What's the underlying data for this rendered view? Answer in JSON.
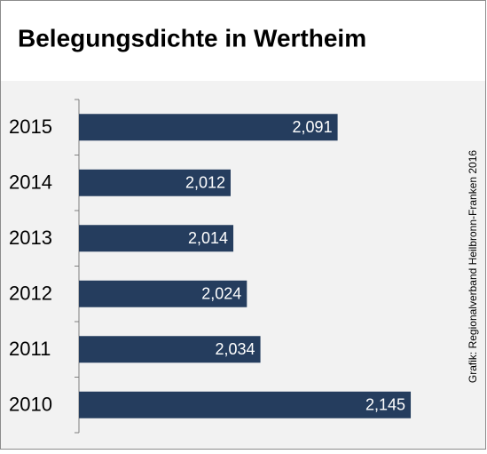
{
  "chart_data": {
    "type": "barh",
    "title": "Belegungsdichte in Wertheim",
    "categories": [
      "2015",
      "2014",
      "2013",
      "2012",
      "2011",
      "2010"
    ],
    "values": [
      2.091,
      2.012,
      2.014,
      2.024,
      2.034,
      2.145
    ],
    "value_labels": [
      "2,091",
      "2,012",
      "2,014",
      "2,024",
      "2,034",
      "2,145"
    ],
    "color": "#253d5e",
    "xlim": [
      1.9,
      2.2
    ],
    "source": "Grafik: Regionalverband Heilbronn-Franken 2016"
  }
}
